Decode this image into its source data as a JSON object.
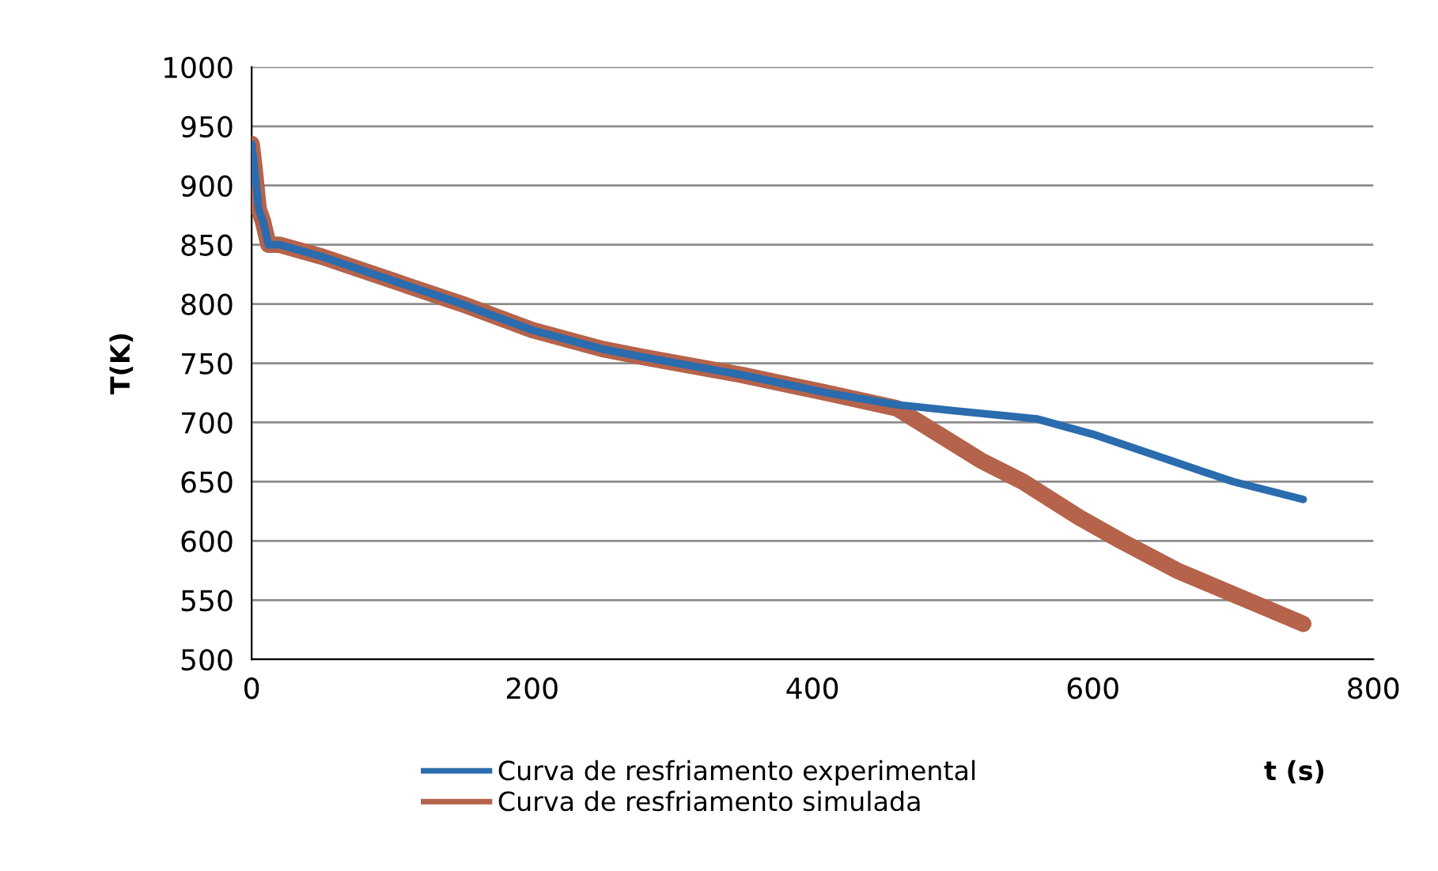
{
  "chart_data": {
    "type": "line",
    "xlabel": "t (s)",
    "ylabel": "T(K)",
    "xlim": [
      0,
      800
    ],
    "xticks": [
      0,
      200,
      400,
      600,
      800
    ],
    "ylim": [
      500,
      1000
    ],
    "yticks": [
      500,
      550,
      600,
      650,
      700,
      750,
      800,
      850,
      900,
      950,
      1000
    ],
    "grid": "y",
    "legend": "bottom",
    "line_style": "solid",
    "marker": "none",
    "series": [
      {
        "name": "Curva de resfriamento experimental",
        "color": "#2a6cad",
        "x": [
          0,
          2,
          5,
          8,
          12,
          20,
          50,
          100,
          150,
          200,
          250,
          280,
          350,
          410,
          460,
          500,
          560,
          600,
          650,
          700,
          750
        ],
        "values": [
          935,
          915,
          880,
          870,
          850,
          850,
          840,
          820,
          800,
          778,
          762,
          755,
          740,
          725,
          715,
          710,
          703,
          690,
          670,
          650,
          635
        ]
      },
      {
        "name": "Curva de resfriamento simulada",
        "color": "#b5634b",
        "x": [
          0,
          2,
          5,
          8,
          12,
          20,
          50,
          100,
          150,
          200,
          250,
          280,
          350,
          410,
          460,
          490,
          520,
          550,
          590,
          620,
          660,
          700,
          750
        ],
        "values": [
          935,
          915,
          880,
          870,
          850,
          850,
          840,
          820,
          800,
          778,
          762,
          755,
          740,
          725,
          712,
          690,
          668,
          650,
          620,
          600,
          575,
          555,
          530
        ]
      }
    ]
  }
}
